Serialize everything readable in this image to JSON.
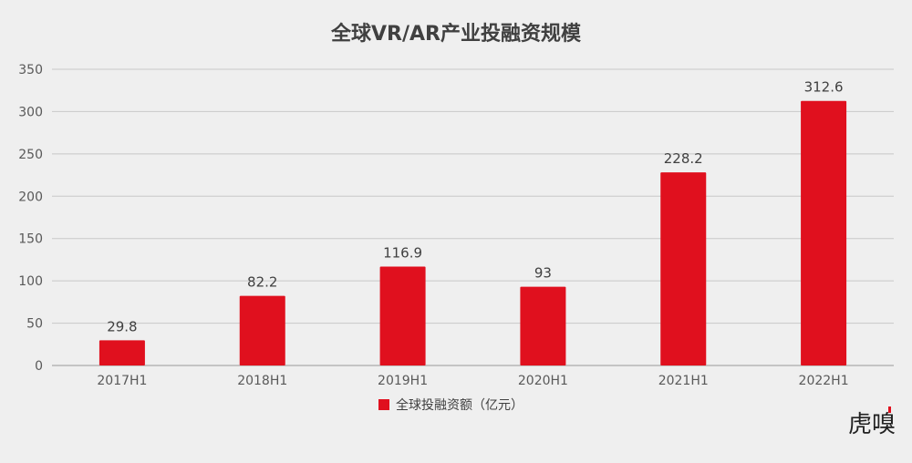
{
  "chart_data": {
    "type": "bar",
    "title": "全球VR/AR产业投融资规模",
    "categories": [
      "2017H1",
      "2018H1",
      "2019H1",
      "2020H1",
      "2021H1",
      "2022H1"
    ],
    "series": [
      {
        "name": "全球投融资额（亿元）",
        "values": [
          29.8,
          82.2,
          116.9,
          93,
          228.2,
          312.6
        ],
        "labels": [
          "29.8",
          "82.2",
          "116.9",
          "93",
          "228.2",
          "312.6"
        ],
        "color": "#e0101e"
      }
    ],
    "yticks": [
      0,
      50,
      100,
      150,
      200,
      250,
      300,
      350
    ],
    "ylim": [
      0,
      350
    ],
    "xlabel": "",
    "ylabel": "",
    "grid": true,
    "legend": "bottom-center"
  },
  "watermark": {
    "text": "虎嗅",
    "color": "#e0101e"
  },
  "colors": {
    "background": "#efefef",
    "grid": "#c8c8c8",
    "axis": "#9a9a9a",
    "bar": "#e0101e"
  }
}
